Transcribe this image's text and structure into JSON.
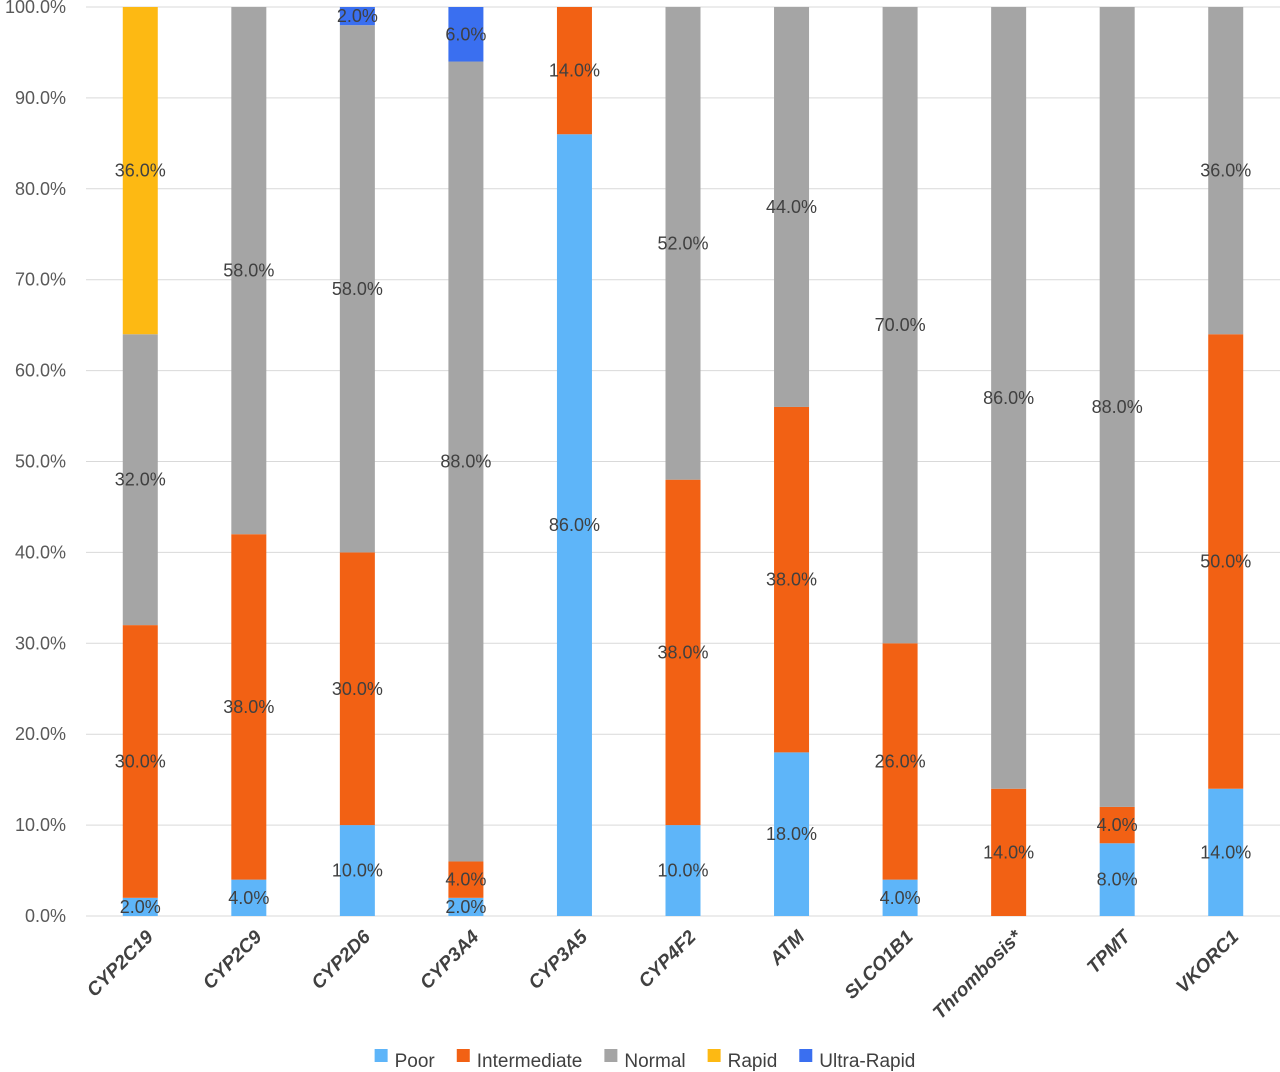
{
  "chart_data": {
    "type": "bar",
    "stacked": true,
    "categories": [
      "CYP2C19",
      "CYP2C9",
      "CYP2D6",
      "CYP3A4",
      "CYP3A5",
      "CYP4F2",
      "ATM",
      "SLCO1B1",
      "Thrombosis*",
      "TPMT",
      "VKORC1"
    ],
    "series": [
      {
        "name": "Poor",
        "color": "#5eb5f9",
        "values": [
          2.0,
          4.0,
          10.0,
          2.0,
          86.0,
          10.0,
          18.0,
          4.0,
          0,
          8.0,
          14.0
        ],
        "labels": [
          "2.0%",
          "4.0%",
          "10.0%",
          "2.0%",
          "86.0%",
          "10.0%",
          "18.0%",
          "4.0%",
          "",
          "8.0%",
          "14.0%"
        ]
      },
      {
        "name": "Intermediate",
        "color": "#f26114",
        "values": [
          30.0,
          38.0,
          30.0,
          4.0,
          14.0,
          38.0,
          38.0,
          26.0,
          14.0,
          4.0,
          50.0
        ],
        "labels": [
          "30.0%",
          "38.0%",
          "30.0%",
          "4.0%",
          "14.0%",
          "38.0%",
          "38.0%",
          "26.0%",
          "14.0%",
          "4.0%",
          "50.0%"
        ]
      },
      {
        "name": "Normal",
        "color": "#a5a5a5",
        "values": [
          32.0,
          58.0,
          58.0,
          88.0,
          0,
          52.0,
          44.0,
          70.0,
          86.0,
          88.0,
          36.0
        ],
        "labels": [
          "32.0%",
          "58.0%",
          "58.0%",
          "88.0%",
          "",
          "52.0%",
          "44.0%",
          "70.0%",
          "86.0%",
          "88.0%",
          "36.0%"
        ]
      },
      {
        "name": "Rapid",
        "color": "#fdb913",
        "values": [
          36.0,
          0,
          0,
          0,
          0,
          0,
          0,
          0,
          0,
          0,
          0
        ],
        "labels": [
          "36.0%",
          "",
          "",
          "",
          "",
          "",
          "",
          "",
          "",
          "",
          ""
        ]
      },
      {
        "name": "Ultra-Rapid",
        "color": "#3a6ff0",
        "values": [
          0,
          0,
          2.0,
          6.0,
          0,
          0,
          0,
          0,
          0,
          0,
          0
        ],
        "labels": [
          "",
          "",
          "2.0%",
          "6.0%",
          "",
          "",
          "",
          "",
          "",
          "",
          ""
        ]
      }
    ],
    "yticks": [
      "0.0%",
      "10.0%",
      "20.0%",
      "30.0%",
      "40.0%",
      "50.0%",
      "60.0%",
      "70.0%",
      "80.0%",
      "90.0%",
      "100.0%"
    ],
    "ylim": [
      0,
      100
    ],
    "grid": true,
    "legend_position": "bottom"
  }
}
